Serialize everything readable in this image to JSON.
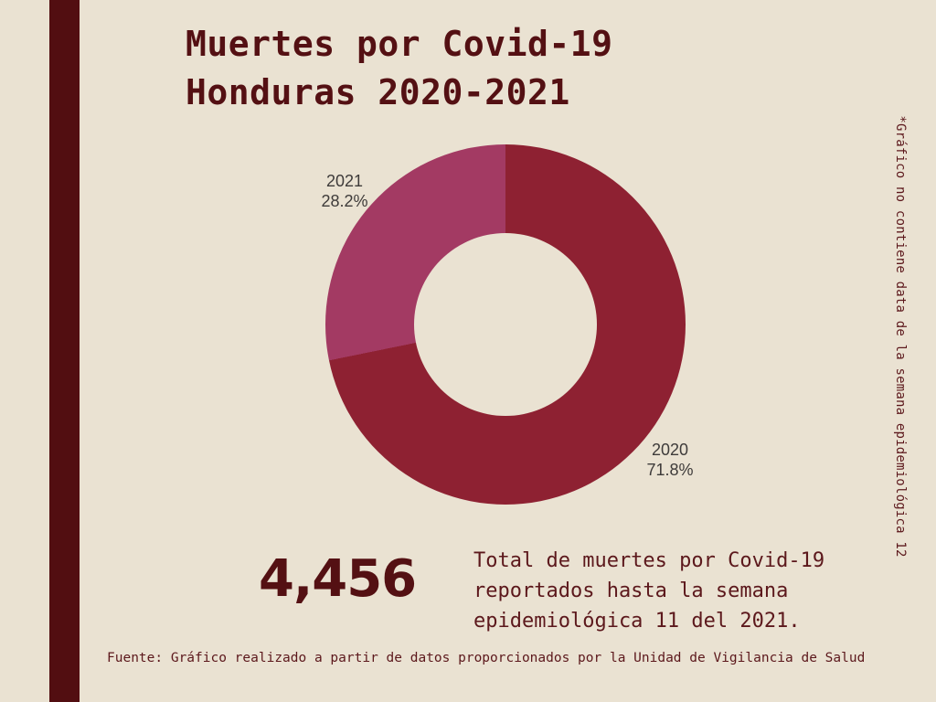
{
  "page": {
    "background_color": "#EAE2D2",
    "accent_bar_color": "#520E11",
    "title_color": "#541013",
    "body_text_color": "#5C181C",
    "label_text_color": "#3E3B3A"
  },
  "title": {
    "lines": [
      "Muertes por Covid-19",
      "Honduras 2020-2021"
    ]
  },
  "chart_data": {
    "type": "pie",
    "subtype": "donut",
    "title": "Muertes por Covid-19 Honduras 2020-2021",
    "categories": [
      "2020",
      "2021"
    ],
    "values": [
      71.8,
      28.2
    ],
    "unit": "%",
    "colors": [
      "#8E2132",
      "#A33A63"
    ],
    "start_angle_deg": 0,
    "direction": "clockwise",
    "inner_radius_ratio": 0.51,
    "legend_position": "none",
    "labels": [
      {
        "year": "2020",
        "pct": "71.8%"
      },
      {
        "year": "2021",
        "pct": "28.2%"
      }
    ]
  },
  "total": {
    "value": "4,456",
    "description_lines": [
      "Total de muertes por Covid-19",
      "reportados hasta la semana",
      "epidemiológica 11 del 2021."
    ]
  },
  "side_note": "*Gráfico no contiene data de la semana epidemiológica 12",
  "footer": "Fuente: Gráfico realizado a partir de datos proporcionados por la Unidad de Vigilancia de Salud"
}
